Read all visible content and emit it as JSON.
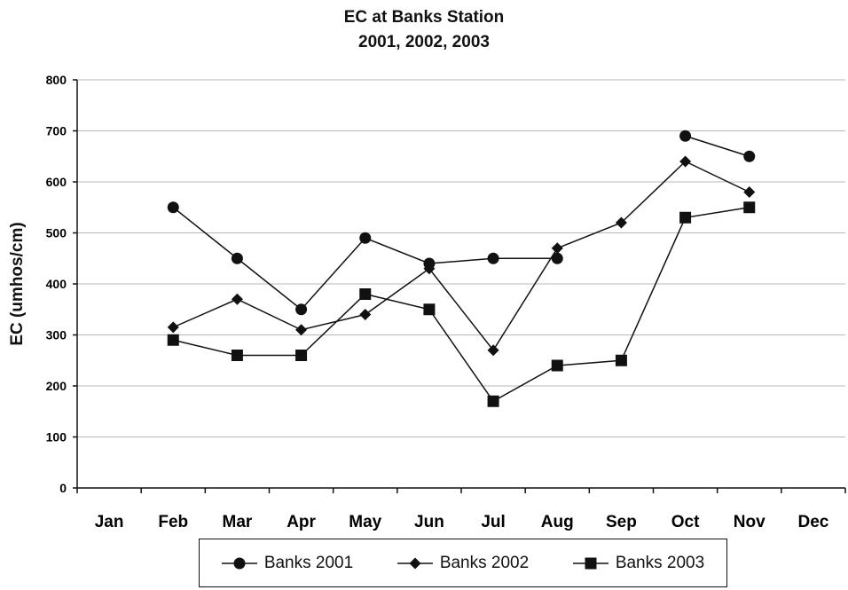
{
  "chart_data": {
    "type": "line",
    "title": "EC at Banks Station",
    "subtitle": "2001, 2002, 2003",
    "ylabel": "EC (umhos/cm)",
    "xlabel": "",
    "ylim": [
      0,
      800
    ],
    "yticks": [
      0,
      100,
      200,
      300,
      400,
      500,
      600,
      700,
      800
    ],
    "categories": [
      "Jan",
      "Feb",
      "Mar",
      "Apr",
      "May",
      "Jun",
      "Jul",
      "Aug",
      "Sep",
      "Oct",
      "Nov",
      "Dec"
    ],
    "grid": true,
    "legend_position": "bottom",
    "series": [
      {
        "name": "Banks 2001",
        "marker": "circle",
        "color": "#111111",
        "values": [
          null,
          550,
          450,
          350,
          490,
          440,
          450,
          450,
          null,
          690,
          650,
          null
        ]
      },
      {
        "name": "Banks 2002",
        "marker": "diamond",
        "color": "#111111",
        "values": [
          null,
          315,
          370,
          310,
          340,
          430,
          270,
          470,
          520,
          640,
          580,
          null
        ]
      },
      {
        "name": "Banks 2003",
        "marker": "square",
        "color": "#111111",
        "values": [
          null,
          290,
          260,
          260,
          380,
          350,
          170,
          240,
          250,
          530,
          550,
          null
        ]
      }
    ]
  }
}
